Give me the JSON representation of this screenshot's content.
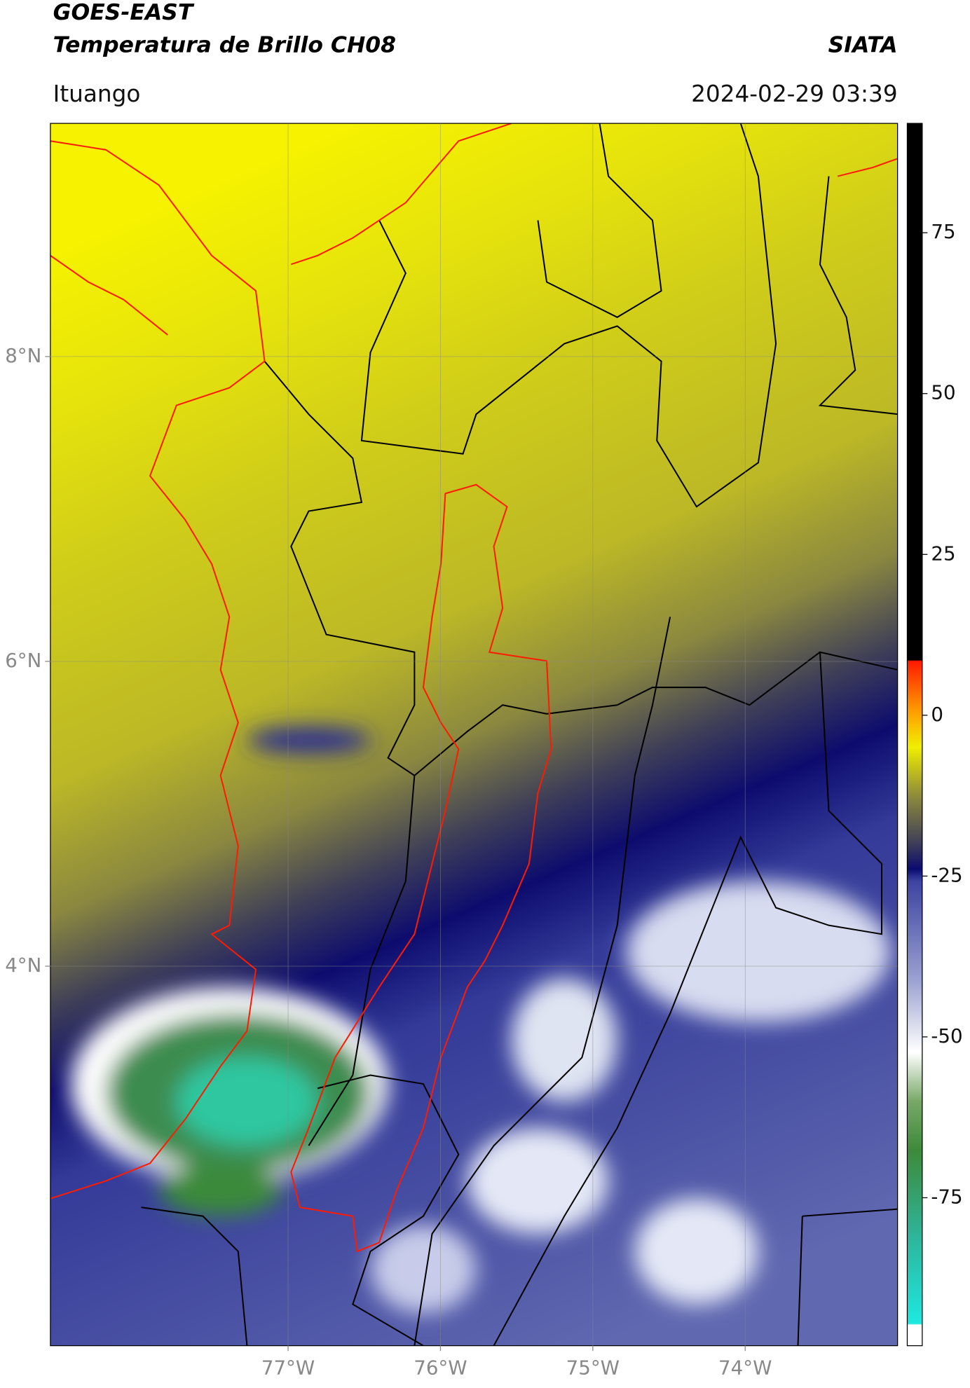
{
  "header": {
    "title": "GOES-EAST",
    "subtitle": "Temperatura de Brillo CH08",
    "location": "Ituango",
    "agency": "SIATA",
    "datetime": "2024-02-29 03:39"
  },
  "map": {
    "xlim": [
      -78.56,
      -73.0
    ],
    "ylim": [
      1.51,
      9.53
    ],
    "xticks": [
      {
        "value": -77,
        "label": "77°W"
      },
      {
        "value": -76,
        "label": "76°W"
      },
      {
        "value": -75,
        "label": "75°W"
      },
      {
        "value": -74,
        "label": "74°W"
      }
    ],
    "yticks": [
      {
        "value": 8,
        "label": "8°N"
      },
      {
        "value": 6,
        "label": "6°N"
      },
      {
        "value": 4,
        "label": "4°N"
      }
    ],
    "grid": true
  },
  "colorbar": {
    "lim": [
      -98,
      92
    ],
    "ticks": [
      75,
      50,
      25,
      0,
      -25,
      -50,
      -75
    ]
  }
}
